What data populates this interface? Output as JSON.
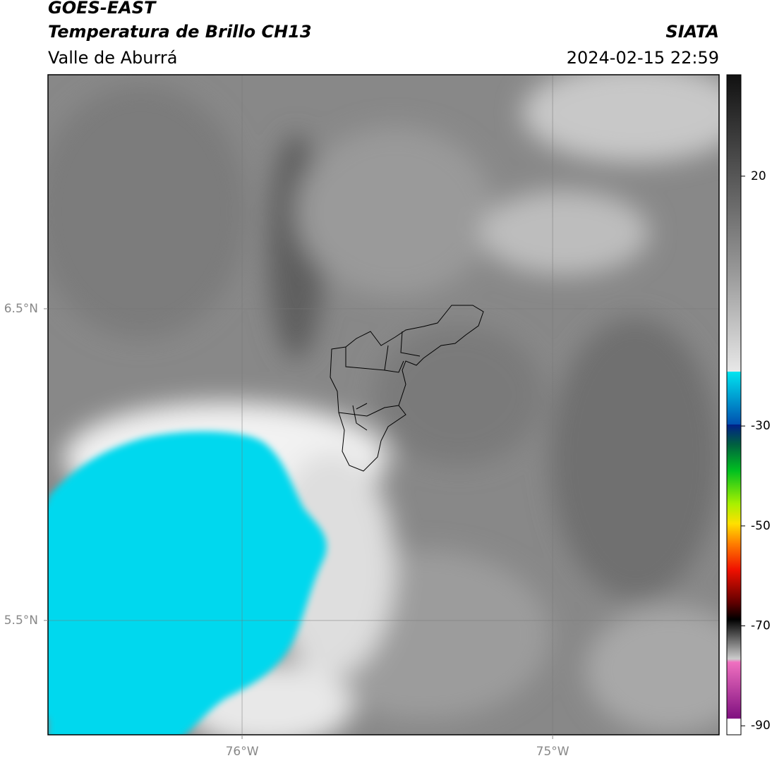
{
  "header": {
    "satellite": "GOES-EAST",
    "product": "Temperatura de Brillo CH13",
    "region": "Valle de Aburrá",
    "source": "SIATA",
    "datetime": "2024-02-15 22:59"
  },
  "map": {
    "xlim": [
      -76.625,
      -74.464
    ],
    "ylim": [
      5.133,
      7.251
    ],
    "xticks": [
      {
        "value": -76,
        "label": "76°W"
      },
      {
        "value": -75,
        "label": "75°W"
      }
    ],
    "yticks": [
      {
        "value": 6.5,
        "label": "6.5°N"
      },
      {
        "value": 5.5,
        "label": "5.5°N"
      }
    ],
    "grid": true
  },
  "colorbar": {
    "lim": [
      -91.8,
      40.3
    ],
    "ticks": [
      20,
      -30,
      -50,
      -70,
      -90
    ]
  }
}
